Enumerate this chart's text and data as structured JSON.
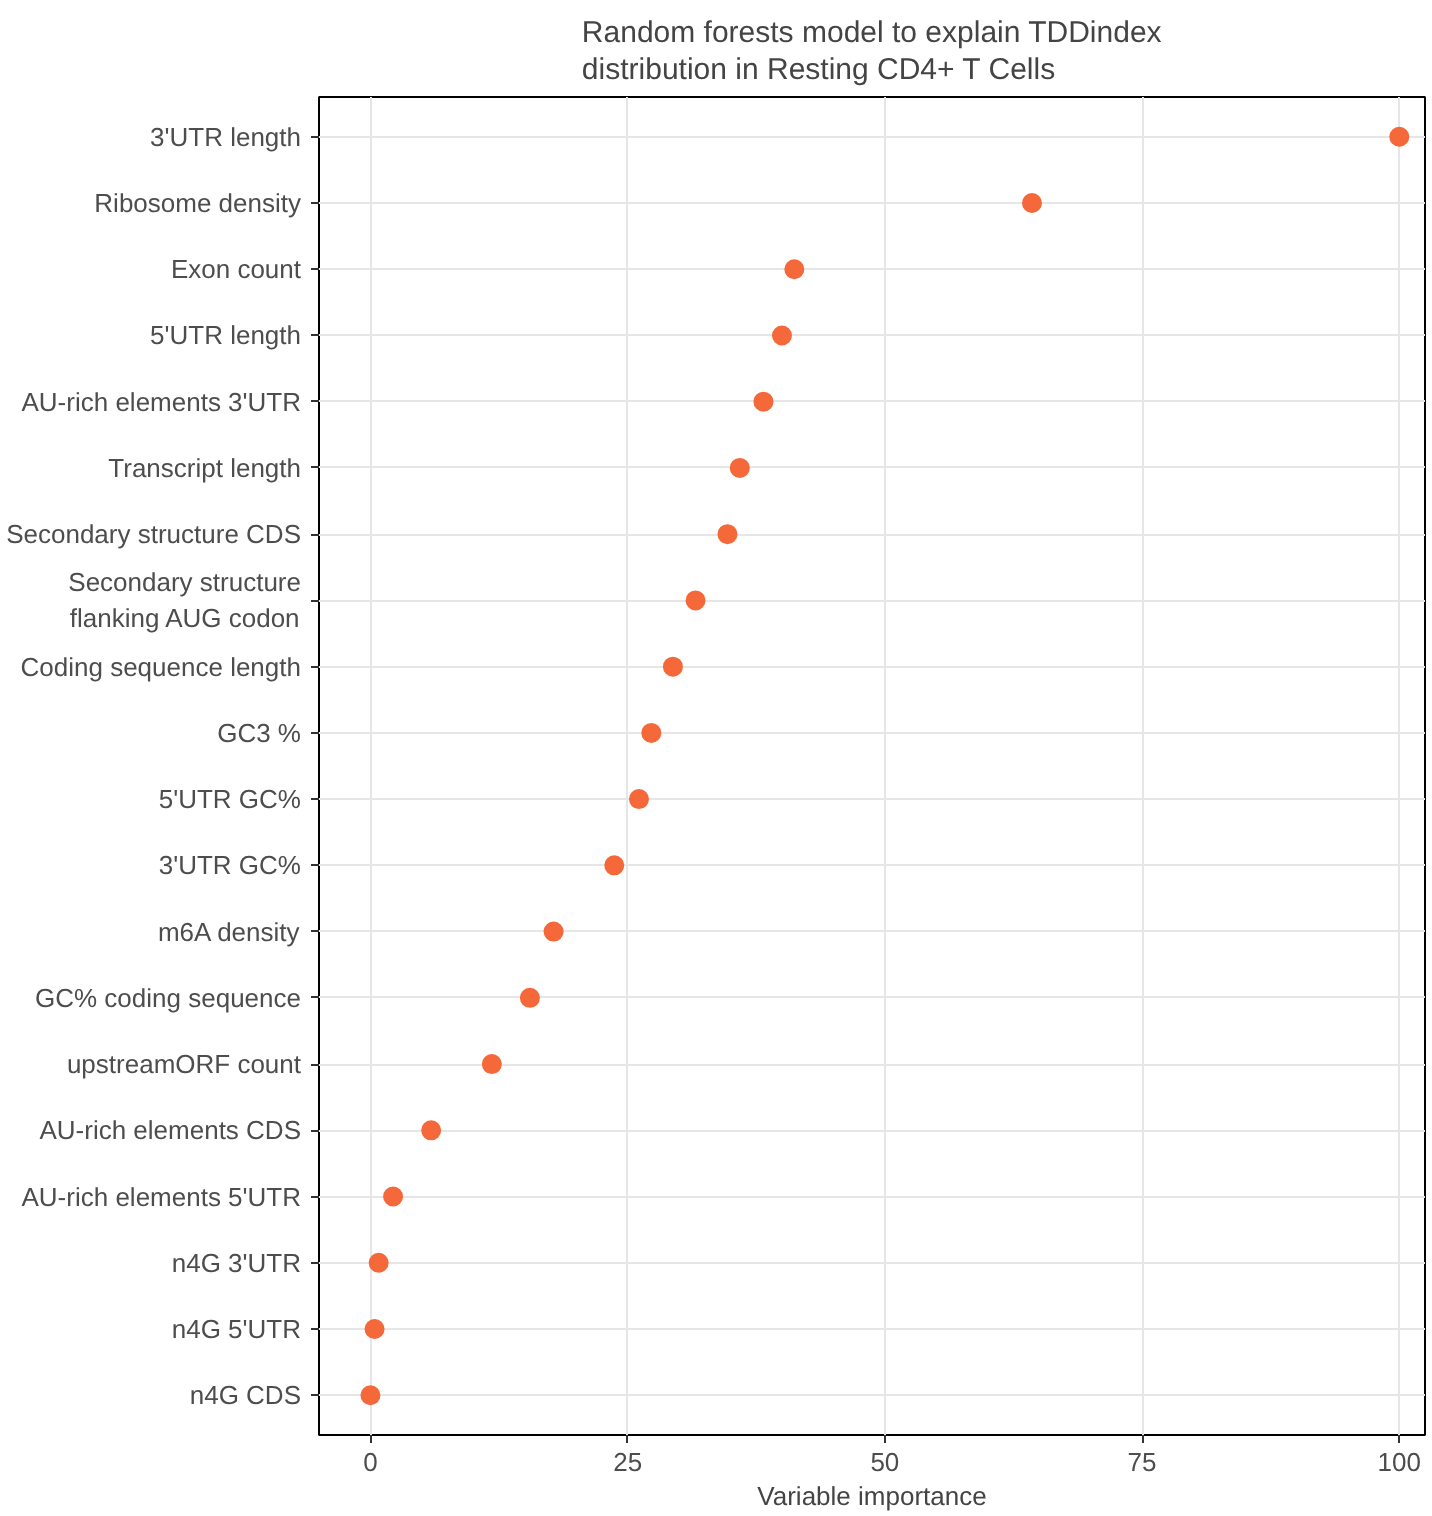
{
  "chart_data": {
    "type": "scatter",
    "title": "Random forests model to explain TDDindex\ndistribution in Resting CD4+ T Cells",
    "xlabel": "Variable importance",
    "orientation": "horizontal",
    "categories": [
      "3'UTR length",
      "Ribosome density",
      "Exon count",
      "5'UTR length",
      "AU-rich elements 3'UTR",
      "Transcript length",
      "Secondary structure CDS",
      "Secondary structure\nflanking AUG codon",
      "Coding sequence length",
      "GC3 %",
      "5'UTR GC%",
      "3'UTR GC%",
      "m6A density",
      "GC% coding sequence",
      "upstreamORF count",
      "AU-rich elements CDS",
      "AU-rich elements 5'UTR",
      "n4G 3'UTR",
      "n4G 5'UTR",
      "n4G CDS"
    ],
    "series": [
      {
        "color": "#f4683a",
        "values": [
          100,
          64.3,
          41.2,
          40.0,
          38.2,
          35.9,
          34.7,
          31.6,
          29.4,
          27.3,
          26.1,
          23.7,
          17.8,
          15.5,
          11.8,
          5.9,
          2.2,
          0.8,
          0.4,
          0
        ]
      }
    ],
    "xlim": [
      -5,
      102.5
    ],
    "xticks": [
      0,
      25,
      50,
      75,
      100
    ],
    "grid": true,
    "marker": "circle"
  }
}
